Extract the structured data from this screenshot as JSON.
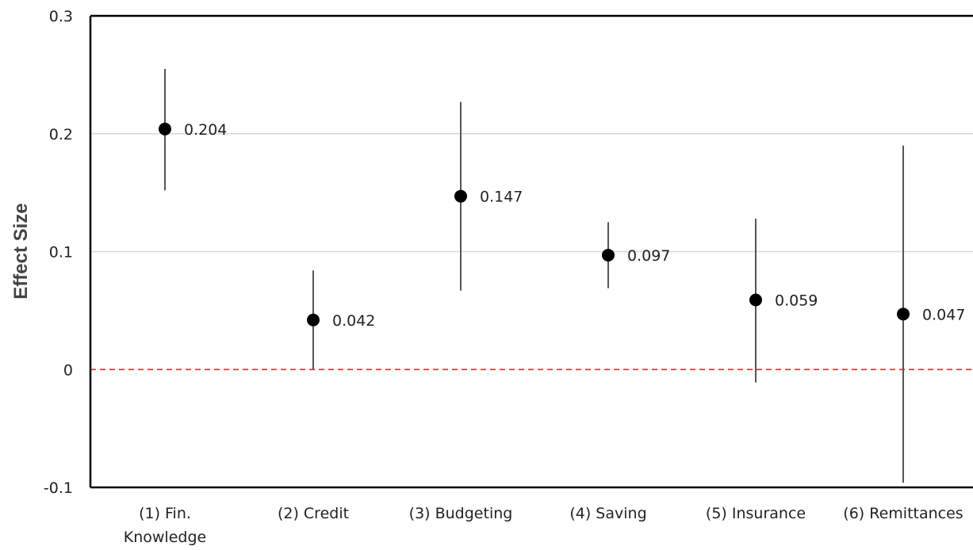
{
  "chart_data": {
    "type": "scatter",
    "title": "",
    "xlabel": "",
    "ylabel": "Effect Size",
    "ylim": [
      -0.1,
      0.3
    ],
    "yticks": [
      -0.1,
      0,
      0.1,
      0.2,
      0.3
    ],
    "ytick_labels": [
      "-0.1",
      "0",
      "0.1",
      "0.2",
      "0.3"
    ],
    "grid": "horizontal",
    "reference_line": {
      "y": 0,
      "color": "#e03c31",
      "style": "dashed"
    },
    "categories": [
      {
        "label_lines": [
          "(1) Fin.",
          "Knowledge"
        ]
      },
      {
        "label_lines": [
          "(2) Credit"
        ]
      },
      {
        "label_lines": [
          "(3) Budgeting"
        ]
      },
      {
        "label_lines": [
          "(4) Saving"
        ]
      },
      {
        "label_lines": [
          "(5) Insurance"
        ]
      },
      {
        "label_lines": [
          "(6) Remittances"
        ]
      }
    ],
    "points": [
      {
        "value": 0.204,
        "label": "0.204",
        "ci_low": 0.152,
        "ci_high": 0.255
      },
      {
        "value": 0.042,
        "label": "0.042",
        "ci_low": 0.0,
        "ci_high": 0.084
      },
      {
        "value": 0.147,
        "label": "0.147",
        "ci_low": 0.067,
        "ci_high": 0.227
      },
      {
        "value": 0.097,
        "label": "0.097",
        "ci_low": 0.069,
        "ci_high": 0.125
      },
      {
        "value": 0.059,
        "label": "0.059",
        "ci_low": -0.011,
        "ci_high": 0.128
      },
      {
        "value": 0.047,
        "label": "0.047",
        "ci_low": -0.096,
        "ci_high": 0.19
      }
    ],
    "colors": {
      "point": "#000000",
      "error_bar": "#555555",
      "grid": "#d9d9d9",
      "frame": "#000000"
    }
  }
}
